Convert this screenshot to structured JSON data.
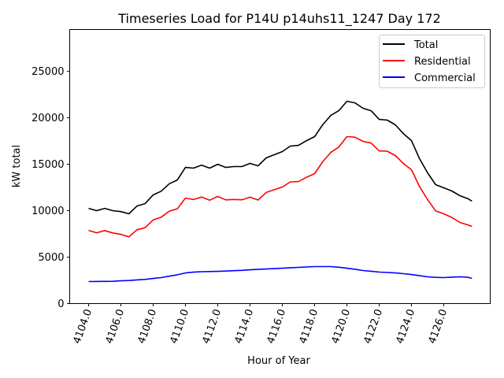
{
  "chart_data": {
    "type": "line",
    "title": "Timeseries Load for P14U p14uhs11_1247  Day 172",
    "xlabel": "Hour of Year",
    "ylabel": "kW total",
    "xlim": [
      4102.83,
      4128.88
    ],
    "ylim": [
      0,
      29500
    ],
    "xticks": [
      4104,
      4106,
      4108,
      4110,
      4112,
      4114,
      4116,
      4118,
      4120,
      4122,
      4124,
      4126
    ],
    "xtick_labels": [
      "4104.0",
      "4106.0",
      "4108.0",
      "4110.0",
      "4112.0",
      "4114.0",
      "4116.0",
      "4118.0",
      "4120.0",
      "4122.0",
      "4124.0",
      "4126.0"
    ],
    "yticks": [
      0,
      5000,
      10000,
      15000,
      20000,
      25000
    ],
    "ytick_labels": [
      "0",
      "5000",
      "10000",
      "15000",
      "20000",
      "25000"
    ],
    "grid": false,
    "legend_position": "top-right",
    "x": [
      4104,
      4104.5,
      4105,
      4105.5,
      4106,
      4106.5,
      4107,
      4107.5,
      4108,
      4108.5,
      4109,
      4109.5,
      4110,
      4110.5,
      4111,
      4111.5,
      4112,
      4112.5,
      4113,
      4113.5,
      4114,
      4114.5,
      4115,
      4115.5,
      4116,
      4116.5,
      4117,
      4117.5,
      4118,
      4118.5,
      4119,
      4119.5,
      4120,
      4120.5,
      4121,
      4121.5,
      4122,
      4122.5,
      4123,
      4123.5,
      4124,
      4124.5,
      4125,
      4125.5,
      4126,
      4126.5,
      4127,
      4127.5,
      4127.75
    ],
    "series": [
      {
        "name": "Total",
        "color": "#000000",
        "values": [
          10250,
          10000,
          10250,
          10000,
          9900,
          9660,
          10500,
          10760,
          11700,
          12100,
          12900,
          13300,
          14660,
          14580,
          14900,
          14580,
          15000,
          14660,
          14750,
          14750,
          15090,
          14830,
          15680,
          16020,
          16360,
          16950,
          17030,
          17540,
          17970,
          19240,
          20250,
          20760,
          21780,
          21610,
          21020,
          20760,
          19830,
          19750,
          19240,
          18300,
          17540,
          15600,
          14070,
          12800,
          12460,
          12120,
          11610,
          11300,
          11020
        ]
      },
      {
        "name": "Residential",
        "color": "#ff0000",
        "values": [
          7880,
          7620,
          7860,
          7600,
          7450,
          7180,
          7950,
          8160,
          9000,
          9300,
          9950,
          10200,
          11360,
          11200,
          11470,
          11130,
          11530,
          11160,
          11210,
          11170,
          11450,
          11150,
          11960,
          12260,
          12550,
          13100,
          13130,
          13600,
          13990,
          15260,
          16270,
          16840,
          17970,
          17910,
          17460,
          17280,
          16440,
          16400,
          15940,
          15080,
          14410,
          12600,
          11190,
          9980,
          9660,
          9270,
          8730,
          8470,
          8310
        ]
      },
      {
        "name": "Commercial",
        "color": "#0000ff",
        "values": [
          2370,
          2380,
          2390,
          2400,
          2450,
          2480,
          2550,
          2600,
          2700,
          2800,
          2950,
          3100,
          3300,
          3380,
          3430,
          3450,
          3470,
          3500,
          3540,
          3580,
          3640,
          3680,
          3720,
          3760,
          3810,
          3850,
          3900,
          3940,
          3980,
          3980,
          3980,
          3920,
          3810,
          3700,
          3560,
          3480,
          3390,
          3350,
          3300,
          3220,
          3130,
          3000,
          2880,
          2820,
          2800,
          2850,
          2880,
          2830,
          2710
        ]
      }
    ]
  }
}
